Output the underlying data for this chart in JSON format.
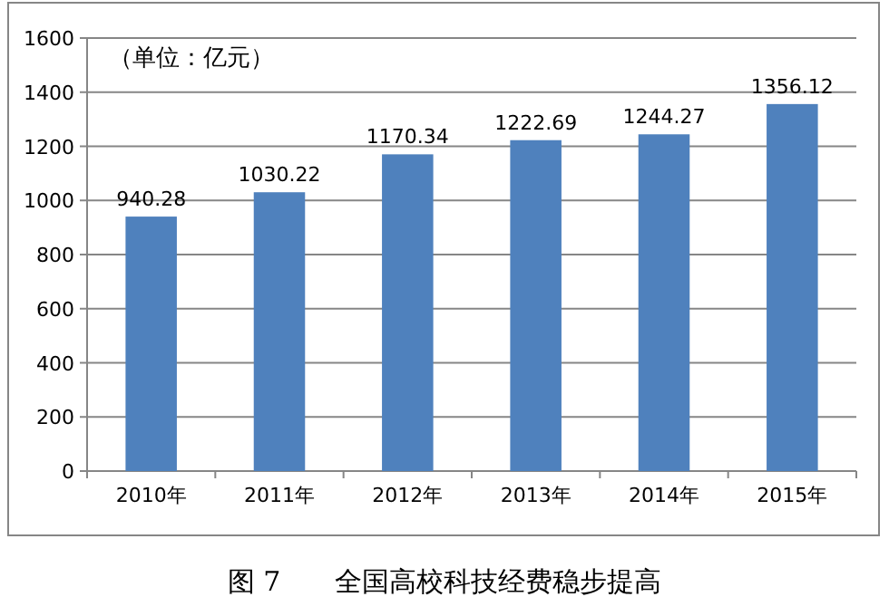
{
  "chart_data": {
    "type": "bar",
    "title": "图 7　　全国高校科技经费稳步提高",
    "annotations": [
      "（单位：亿元）"
    ],
    "categories": [
      "2010年",
      "2011年",
      "2012年",
      "2013年",
      "2014年",
      "2015年"
    ],
    "values": [
      940.28,
      1030.22,
      1170.34,
      1222.69,
      1244.27,
      1356.12
    ],
    "color": "#4f81bd",
    "ylim": [
      0,
      1600
    ],
    "yticks": [
      0,
      200,
      400,
      600,
      800,
      1000,
      1200,
      1400,
      1600
    ],
    "grid": "y",
    "data_labels": true
  }
}
